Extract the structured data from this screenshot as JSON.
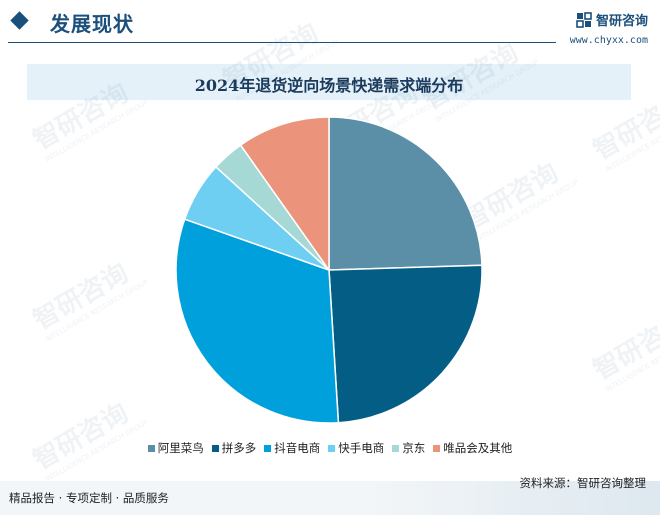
{
  "header": {
    "section_title": "发展现状",
    "brand_name": "智研咨询",
    "brand_url": "www.chyxx.com"
  },
  "chart_data": {
    "type": "pie",
    "title": "2024年退货逆向场景快递需求端分布",
    "categories": [
      "阿里菜鸟",
      "拼多多",
      "抖音电商",
      "快手电商",
      "京东",
      "唯品会及其他"
    ],
    "values": [
      25,
      25,
      32,
      6.5,
      3.5,
      10
    ],
    "colors": [
      "#5b8fa8",
      "#045d85",
      "#00a0dc",
      "#6ecff2",
      "#a6d9d6",
      "#ec937b"
    ],
    "legend_position": "bottom"
  },
  "watermark": {
    "text": "智研咨询",
    "subtext": "INTELLIGENCE RESEARCH GROUP"
  },
  "footer": {
    "left_text": "精品报告 · 专项定制 · 品质服务",
    "source_text": "资料来源：智研咨询整理"
  }
}
